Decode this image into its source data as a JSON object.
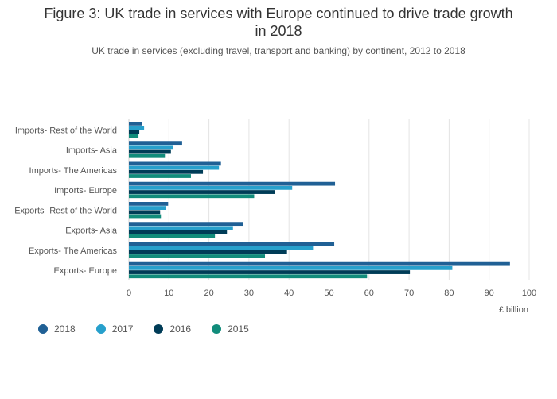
{
  "title_line1": "Figure 3: UK trade in services with Europe continued to drive trade growth",
  "title_line2": "in 2018",
  "subtitle": "UK trade in services (excluding travel, transport and banking) by continent, 2012 to 2018",
  "chart_data": {
    "type": "bar",
    "orientation": "horizontal",
    "categories": [
      "Imports- Rest of the World",
      "Imports- Asia",
      "Imports- The Americas",
      "Imports- Europe",
      "Exports- Rest of the World",
      "Exports- Asia",
      "Exports- The Americas",
      "Exports- Europe"
    ],
    "series": [
      {
        "name": "2018",
        "color": "#206095",
        "values": [
          3.2,
          13.3,
          23.0,
          51.5,
          9.8,
          28.5,
          51.3,
          95.2
        ]
      },
      {
        "name": "2017",
        "color": "#27a0cc",
        "values": [
          3.8,
          11.0,
          22.5,
          40.8,
          9.2,
          26.0,
          46.0,
          80.8
        ]
      },
      {
        "name": "2016",
        "color": "#003c57",
        "values": [
          2.6,
          10.5,
          18.5,
          36.5,
          7.8,
          24.5,
          39.5,
          70.2
        ]
      },
      {
        "name": "2015",
        "color": "#118c7b",
        "values": [
          2.4,
          9.0,
          15.5,
          31.3,
          8.0,
          21.5,
          34.0,
          59.5
        ]
      }
    ],
    "xlabel": "£ billion",
    "xlim": [
      0,
      100
    ],
    "xticks": [
      "0",
      "10",
      "20",
      "30",
      "40",
      "50",
      "60",
      "70",
      "80",
      "90",
      "100"
    ],
    "grid": true,
    "legend_position": "bottom-left"
  }
}
